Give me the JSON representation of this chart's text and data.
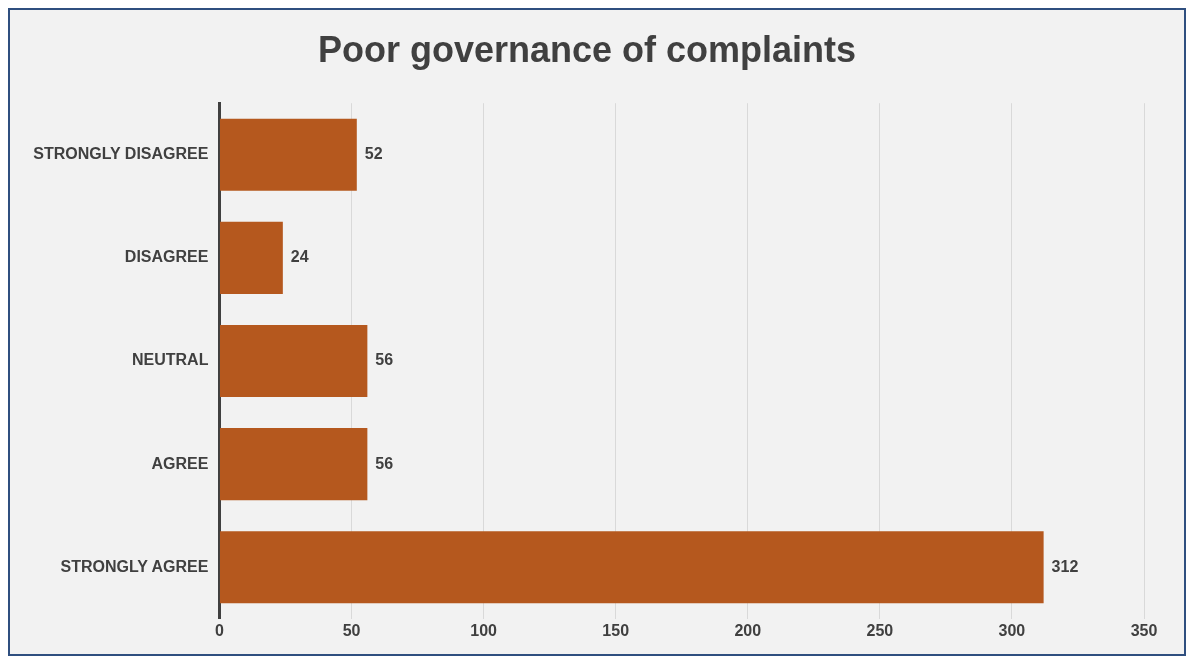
{
  "chart_data": {
    "type": "bar",
    "orientation": "horizontal",
    "title": "Poor governance of complaints",
    "categories": [
      "STRONGLY DISAGREE",
      "DISAGREE",
      "NEUTRAL",
      "AGREE",
      "STRONGLY AGREE"
    ],
    "values": [
      52,
      24,
      56,
      56,
      312
    ],
    "color": "#b5581e",
    "xlim": [
      0,
      350
    ],
    "xticks": [
      0,
      50,
      100,
      150,
      200,
      250,
      300,
      350
    ],
    "grid": "x",
    "data_labels": true
  }
}
